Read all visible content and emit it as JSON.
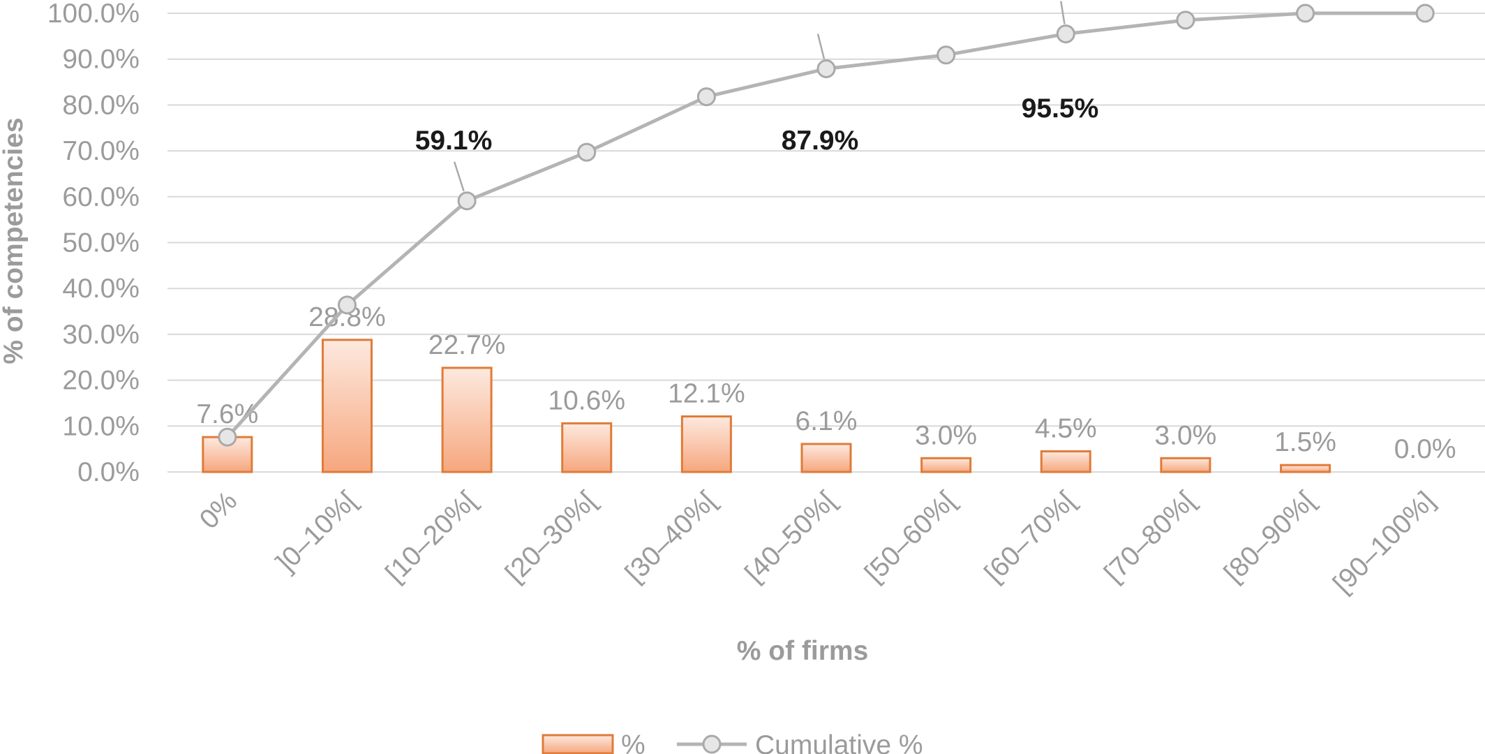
{
  "chart_data": {
    "type": "bar",
    "categories": [
      "0%",
      "]0–10%[",
      "[10–20%[",
      "[20–30%[",
      "[30–40%[",
      "[40–50%[",
      "[50–60%[",
      "[60–70%[",
      "[70–80%[",
      "[80–90%[",
      "[90–100%]"
    ],
    "xlabel": "% of firms",
    "ylabel": "% of competencies",
    "ylim": [
      0,
      100
    ],
    "yticks": [
      "0.0%",
      "10.0%",
      "20.0%",
      "30.0%",
      "40.0%",
      "50.0%",
      "60.0%",
      "70.0%",
      "80.0%",
      "90.0%",
      "100.0%"
    ],
    "grid": true,
    "legend_position": "bottom",
    "series": [
      {
        "name": "%",
        "type": "bar",
        "color": "#e07b39",
        "values": [
          7.6,
          28.8,
          22.7,
          10.6,
          12.1,
          6.1,
          3.0,
          4.5,
          3.0,
          1.5,
          0.0
        ],
        "labels": [
          "7.6%",
          "28.8%",
          "22.7%",
          "10.6%",
          "12.1%",
          "6.1%",
          "3.0%",
          "4.5%",
          "3.0%",
          "1.5%",
          "0.0%"
        ]
      },
      {
        "name": "Cumulative %",
        "type": "line",
        "color": "#b4b4b4",
        "values": [
          7.6,
          36.4,
          59.1,
          69.7,
          81.8,
          87.9,
          90.9,
          95.5,
          98.5,
          100.0,
          100.0
        ]
      }
    ],
    "annotations": [
      {
        "index": 2,
        "text": "59.1%"
      },
      {
        "index": 5,
        "text": "87.9%"
      },
      {
        "index": 7,
        "text": "95.5%"
      }
    ]
  }
}
